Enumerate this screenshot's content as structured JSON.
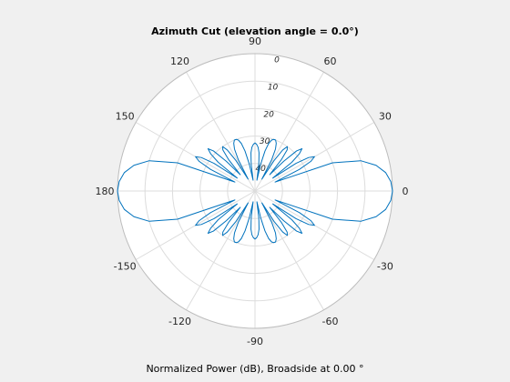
{
  "figure": {
    "title": "Azimuth Cut (elevation angle = 0.0°)",
    "xlabel": "Normalized Power (dB), Broadside at 0.00 °"
  },
  "chart_data": {
    "type": "polar-line",
    "title": "Azimuth Cut (elevation angle = 0.0°)",
    "xlabel": "Normalized Power (dB), Broadside at 0.00 °",
    "angle_ticks": [
      "0",
      "30",
      "60",
      "90",
      "120",
      "150",
      "180",
      "-150",
      "-120",
      "-90",
      "-60",
      "-30"
    ],
    "angle_tick_values_deg": [
      0,
      30,
      60,
      90,
      120,
      150,
      180,
      210,
      240,
      270,
      300,
      330
    ],
    "radial_tick_labels": [
      "0",
      "10",
      "20",
      "30",
      "40"
    ],
    "radial_tick_values_db": [
      0,
      -10,
      -20,
      -30,
      -40
    ],
    "radial_range_db": [
      -50,
      0
    ],
    "grid": true,
    "series": [
      {
        "color": "#0072bd",
        "angles_deg": [
          0,
          4,
          8,
          12,
          16,
          20,
          24,
          26,
          28,
          30,
          32,
          34,
          36,
          38,
          40,
          42,
          44,
          46,
          48,
          50,
          52,
          54,
          56,
          58,
          60,
          62,
          64,
          66,
          68,
          70,
          72,
          74,
          76,
          78,
          80,
          82,
          84,
          86,
          88,
          90
        ],
        "power_db": [
          0,
          -0.5,
          -2,
          -5,
          -10,
          -20,
          -42,
          -32,
          -27,
          -25,
          -27,
          -32,
          -42,
          -33,
          -29,
          -27,
          -29,
          -35,
          -42,
          -35,
          -31,
          -30,
          -32,
          -37,
          -45,
          -37,
          -33,
          -31,
          -30,
          -30,
          -30.5,
          -32,
          -35,
          -40,
          -46,
          -40,
          -36,
          -34,
          -33,
          -32.5
        ],
        "symmetry": "mirrored about 0-180 and 90-270 axes"
      }
    ]
  }
}
